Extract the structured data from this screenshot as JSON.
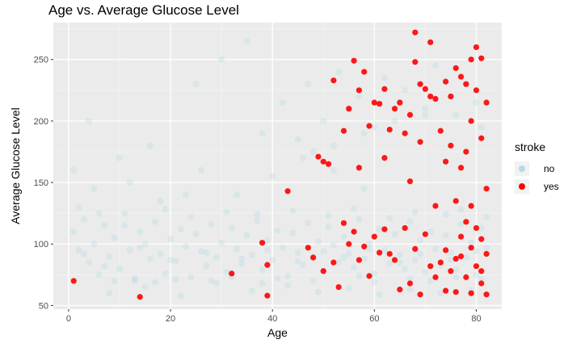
{
  "chart_data": {
    "type": "scatter",
    "title": "Age vs. Average Glucose Level",
    "xlabel": "Age",
    "ylabel": "Average Glucose Level",
    "xlim": [
      -3,
      85
    ],
    "ylim": [
      47,
      280
    ],
    "x_ticks": [
      0,
      20,
      40,
      60,
      80
    ],
    "y_ticks": [
      50,
      100,
      150,
      200,
      250
    ],
    "x_tick_labels": [
      "0",
      "20",
      "40",
      "60",
      "80"
    ],
    "y_tick_labels": [
      "50",
      "100",
      "150",
      "200",
      "250"
    ],
    "grid": true,
    "legend": {
      "title": "stroke",
      "placement": "right"
    },
    "series": [
      {
        "name": "no",
        "color": "#add8e6",
        "opacity": 0.3,
        "points": [
          [
            1,
            110
          ],
          [
            2,
            95
          ],
          [
            3,
            120
          ],
          [
            4,
            85
          ],
          [
            5,
            100
          ],
          [
            6,
            75
          ],
          [
            7,
            115
          ],
          [
            8,
            90
          ],
          [
            9,
            105
          ],
          [
            10,
            80
          ],
          [
            11,
            125
          ],
          [
            12,
            95
          ],
          [
            13,
            70
          ],
          [
            14,
            110
          ],
          [
            15,
            100
          ],
          [
            16,
            88
          ],
          [
            17,
            118
          ],
          [
            18,
            92
          ],
          [
            19,
            76
          ],
          [
            20,
            104
          ],
          [
            21,
            86
          ],
          [
            22,
            112
          ],
          [
            23,
            98
          ],
          [
            24,
            73
          ],
          [
            25,
            108
          ],
          [
            26,
            94
          ],
          [
            27,
            82
          ],
          [
            28,
            116
          ],
          [
            29,
            89
          ],
          [
            30,
            101
          ],
          [
            31,
            77
          ],
          [
            32,
            113
          ],
          [
            33,
            96
          ],
          [
            34,
            84
          ],
          [
            35,
            107
          ],
          [
            36,
            91
          ],
          [
            37,
            119
          ],
          [
            38,
            79
          ],
          [
            39,
            103
          ],
          [
            40,
            87
          ],
          [
            41,
            111
          ],
          [
            42,
            97
          ],
          [
            43,
            74
          ],
          [
            44,
            109
          ],
          [
            45,
            93
          ],
          [
            46,
            83
          ],
          [
            47,
            117
          ],
          [
            48,
            90
          ],
          [
            49,
            102
          ],
          [
            50,
            78
          ],
          [
            51,
            114
          ],
          [
            52,
            99
          ],
          [
            53,
            85
          ],
          [
            54,
            106
          ],
          [
            55,
            92
          ],
          [
            56,
            81
          ],
          [
            57,
            120
          ],
          [
            58,
            88
          ],
          [
            59,
            100
          ],
          [
            60,
            76
          ],
          [
            61,
            112
          ],
          [
            62,
            95
          ],
          [
            63,
            84
          ],
          [
            64,
            108
          ],
          [
            65,
            91
          ],
          [
            66,
            80
          ],
          [
            67,
            118
          ],
          [
            68,
            87
          ],
          [
            69,
            103
          ],
          [
            70,
            77
          ],
          [
            71,
            110
          ],
          [
            72,
            96
          ],
          [
            73,
            83
          ],
          [
            74,
            107
          ],
          [
            75,
            93
          ],
          [
            76,
            79
          ],
          [
            77,
            116
          ],
          [
            78,
            89
          ],
          [
            79,
            101
          ],
          [
            80,
            75
          ],
          [
            81,
            113
          ],
          [
            82,
            97
          ],
          [
            2,
            130
          ],
          [
            5,
            145
          ],
          [
            8,
            60
          ],
          [
            12,
            150
          ],
          [
            15,
            65
          ],
          [
            18,
            135
          ],
          [
            22,
            58
          ],
          [
            26,
            160
          ],
          [
            29,
            68
          ],
          [
            33,
            140
          ],
          [
            36,
            62
          ],
          [
            40,
            155
          ],
          [
            43,
            66
          ],
          [
            46,
            170
          ],
          [
            49,
            61
          ],
          [
            52,
            180
          ],
          [
            55,
            64
          ],
          [
            58,
            190
          ],
          [
            61,
            59
          ],
          [
            64,
            200
          ],
          [
            67,
            63
          ],
          [
            70,
            210
          ],
          [
            73,
            60
          ],
          [
            76,
            205
          ],
          [
            79,
            62
          ],
          [
            81,
            195
          ],
          [
            4,
            200
          ],
          [
            10,
            170
          ],
          [
            16,
            180
          ],
          [
            25,
            230
          ],
          [
            30,
            250
          ],
          [
            35,
            265
          ],
          [
            42,
            215
          ],
          [
            47,
            230
          ],
          [
            53,
            240
          ],
          [
            57,
            220
          ],
          [
            62,
            235
          ],
          [
            66,
            225
          ],
          [
            72,
            245
          ],
          [
            78,
            230
          ],
          [
            80,
            215
          ],
          [
            1,
            160
          ],
          [
            6,
            125
          ],
          [
            11,
            115
          ],
          [
            19,
            128
          ],
          [
            24,
            122
          ],
          [
            31,
            126
          ],
          [
            37,
            124
          ],
          [
            44,
            127
          ],
          [
            51,
            123
          ],
          [
            56,
            129
          ],
          [
            63,
            121
          ],
          [
            68,
            126
          ],
          [
            74,
            124
          ],
          [
            77,
            128
          ],
          [
            82,
            122
          ],
          [
            3,
            92
          ],
          [
            7,
            82
          ],
          [
            14,
            97
          ],
          [
            20,
            87
          ],
          [
            27,
            93
          ],
          [
            34,
            88
          ],
          [
            39,
            95
          ],
          [
            45,
            86
          ],
          [
            50,
            94
          ],
          [
            54,
            89
          ],
          [
            59,
            96
          ],
          [
            65,
            85
          ],
          [
            69,
            92
          ],
          [
            75,
            87
          ],
          [
            80,
            94
          ],
          [
            9,
            70
          ],
          [
            13,
            72
          ],
          [
            17,
            69
          ],
          [
            21,
            71
          ],
          [
            28,
            70
          ],
          [
            32,
            73
          ],
          [
            38,
            68
          ],
          [
            41,
            72
          ],
          [
            48,
            70
          ],
          [
            57,
            74
          ],
          [
            60,
            69
          ],
          [
            67,
            72
          ],
          [
            71,
            70
          ],
          [
            76,
            73
          ],
          [
            81,
            71
          ],
          [
            23,
            140
          ],
          [
            38,
            190
          ],
          [
            50,
            200
          ],
          [
            55,
            210
          ],
          [
            60,
            195
          ],
          [
            65,
            215
          ],
          [
            70,
            205
          ],
          [
            75,
            220
          ],
          [
            45,
            185
          ],
          [
            48,
            175
          ],
          [
            52,
            160
          ],
          [
            58,
            145
          ]
        ]
      },
      {
        "name": "yes",
        "color": "#ff0000",
        "opacity": 0.9,
        "points": [
          [
            1,
            70
          ],
          [
            14,
            57
          ],
          [
            32,
            76
          ],
          [
            38,
            101
          ],
          [
            39,
            83
          ],
          [
            39,
            58
          ],
          [
            43,
            143
          ],
          [
            49,
            171
          ],
          [
            50,
            167
          ],
          [
            51,
            165
          ],
          [
            52,
            233
          ],
          [
            54,
            192
          ],
          [
            55,
            210
          ],
          [
            56,
            249
          ],
          [
            57,
            225
          ],
          [
            57,
            162
          ],
          [
            58,
            240
          ],
          [
            59,
            196
          ],
          [
            60,
            215
          ],
          [
            61,
            214
          ],
          [
            62,
            170
          ],
          [
            62,
            226
          ],
          [
            63,
            193
          ],
          [
            64,
            210
          ],
          [
            65,
            215
          ],
          [
            66,
            190
          ],
          [
            67,
            205
          ],
          [
            67,
            151
          ],
          [
            68,
            272
          ],
          [
            68,
            248
          ],
          [
            69,
            183
          ],
          [
            69,
            230
          ],
          [
            70,
            226
          ],
          [
            71,
            264
          ],
          [
            71,
            220
          ],
          [
            72,
            218
          ],
          [
            73,
            192
          ],
          [
            74,
            232
          ],
          [
            74,
            167
          ],
          [
            75,
            220
          ],
          [
            75,
            180
          ],
          [
            76,
            243
          ],
          [
            77,
            162
          ],
          [
            77,
            236
          ],
          [
            78,
            230
          ],
          [
            78,
            175
          ],
          [
            79,
            250
          ],
          [
            79,
            200
          ],
          [
            80,
            260
          ],
          [
            80,
            225
          ],
          [
            81,
            251
          ],
          [
            81,
            186
          ],
          [
            82,
            215
          ],
          [
            82,
            145
          ],
          [
            54,
            117
          ],
          [
            56,
            110
          ],
          [
            58,
            98
          ],
          [
            60,
            106
          ],
          [
            62,
            112
          ],
          [
            63,
            92
          ],
          [
            64,
            87
          ],
          [
            66,
            113
          ],
          [
            67,
            68
          ],
          [
            68,
            96
          ],
          [
            70,
            108
          ],
          [
            71,
            82
          ],
          [
            72,
            131
          ],
          [
            73,
            85
          ],
          [
            74,
            95
          ],
          [
            75,
            78
          ],
          [
            76,
            135
          ],
          [
            76,
            61
          ],
          [
            77,
            106
          ],
          [
            77,
            90
          ],
          [
            78,
            118
          ],
          [
            78,
            73
          ],
          [
            79,
            97
          ],
          [
            79,
            60
          ],
          [
            80,
            113
          ],
          [
            80,
            82
          ],
          [
            81,
            104
          ],
          [
            81,
            68
          ],
          [
            82,
            92
          ],
          [
            82,
            59
          ],
          [
            47,
            97
          ],
          [
            48,
            89
          ],
          [
            50,
            78
          ],
          [
            52,
            85
          ],
          [
            53,
            65
          ],
          [
            55,
            100
          ],
          [
            57,
            87
          ],
          [
            59,
            74
          ],
          [
            61,
            93
          ],
          [
            65,
            63
          ],
          [
            69,
            59
          ],
          [
            72,
            73
          ],
          [
            74,
            62
          ],
          [
            76,
            88
          ],
          [
            79,
            131
          ],
          [
            81,
            78
          ]
        ]
      }
    ]
  }
}
